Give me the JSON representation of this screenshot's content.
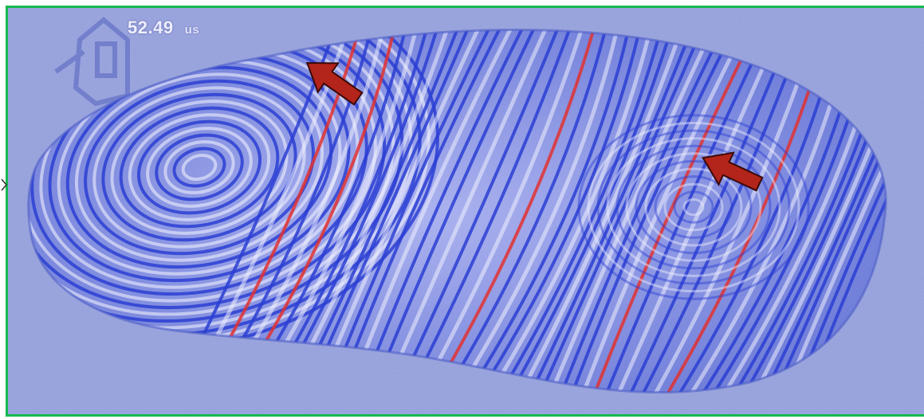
{
  "readout": {
    "value": "52.49",
    "unit": "us"
  },
  "colors": {
    "frame": "#16b94e",
    "background": "#8e9ad8",
    "fringe_dark": "#1a2fd0",
    "fringe_light": "#f4f4ff",
    "fringe_red": "#e4211c",
    "arrow": "#b3241b"
  },
  "arrows": [
    {
      "name": "upper-left-arrow",
      "points": "up-left"
    },
    {
      "name": "right-arrow",
      "points": "up-left"
    }
  ]
}
